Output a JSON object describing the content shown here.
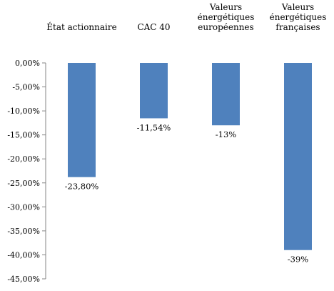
{
  "chart_data": {
    "type": "bar",
    "title": "",
    "xlabel": "",
    "ylabel": "",
    "categories": [
      [
        "État actionnaire"
      ],
      [
        "CAC 40"
      ],
      [
        "Valeurs",
        "énergétiques",
        "européennes"
      ],
      [
        "Valeurs",
        "énergétiques",
        "françaises"
      ]
    ],
    "values": [
      -23.8,
      -11.54,
      -13,
      -39
    ],
    "data_labels": [
      "-23,80%",
      "-11,54%",
      "-13%",
      "-39%"
    ],
    "ylim": [
      -45,
      0
    ],
    "yticks": [
      0,
      -5,
      -10,
      -15,
      -20,
      -25,
      -30,
      -35,
      -40,
      -45
    ],
    "ytick_labels": [
      "0,00%",
      "-5,00%",
      "-10,00%",
      "-15,00%",
      "-20,00%",
      "-25,00%",
      "-30,00%",
      "-35,00%",
      "-40,00%",
      "-45,00%"
    ],
    "grid": false,
    "legend": "none",
    "bar_color": "#4F81BD",
    "axis_color": "#868686"
  }
}
